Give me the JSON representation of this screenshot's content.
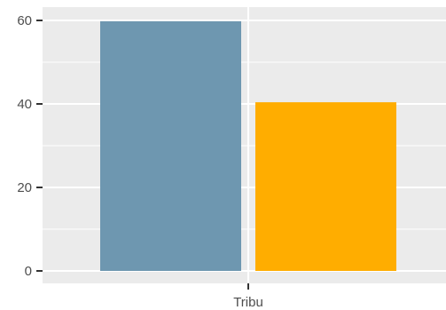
{
  "chart_data": {
    "type": "bar",
    "x_category": "Tribu",
    "series": [
      {
        "value": 59.8,
        "color": "#6E97B0"
      },
      {
        "value": 40.4,
        "color": "#FFAD00"
      }
    ],
    "ylim": [
      0,
      63
    ],
    "yticks": [
      0,
      20,
      40,
      60
    ],
    "grid": true,
    "panel_background": "#EBEBEB",
    "grid_color": "#FFFFFF",
    "legend": "none"
  }
}
